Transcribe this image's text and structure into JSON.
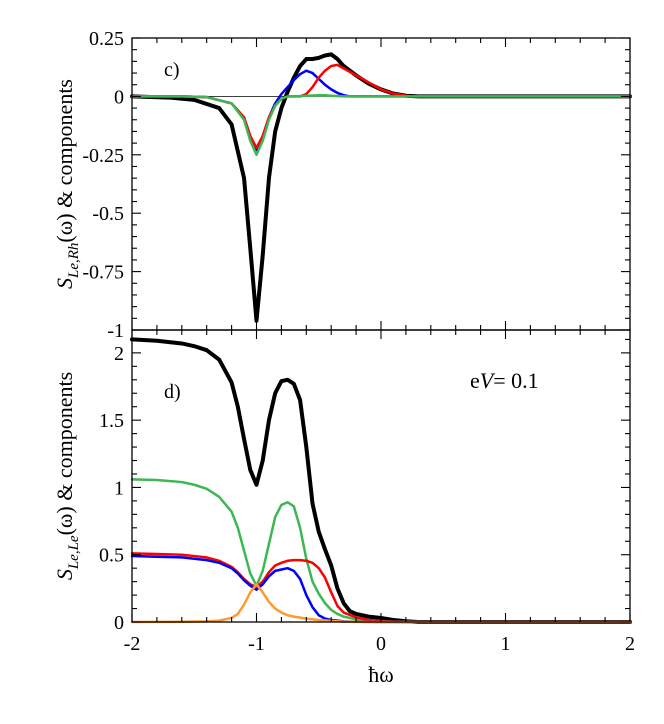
{
  "chart_data": [
    {
      "type": "line",
      "panel_label": "c)",
      "title": "",
      "xlabel": "",
      "ylabel": {
        "prefix": "S",
        "subscript": "Le,Rh",
        "suffix": "(ω) & components"
      },
      "xlim": [
        -2,
        2
      ],
      "ylim": [
        -1,
        0.25
      ],
      "yticks": [
        0.25,
        0,
        -0.25,
        -0.5,
        -0.75,
        -1
      ],
      "ytick_labels": [
        "0.25",
        "0",
        "-0.25",
        "-0.5",
        "-0.75",
        "-1"
      ],
      "zero_line": true,
      "series": [
        {
          "name": "total",
          "color": "#000000",
          "x": [
            -2,
            -1.7,
            -1.5,
            -1.3,
            -1.2,
            -1.1,
            -1.05,
            -1.0,
            -0.95,
            -0.9,
            -0.85,
            -0.8,
            -0.75,
            -0.7,
            -0.65,
            -0.6,
            -0.55,
            -0.5,
            -0.45,
            -0.4,
            -0.35,
            -0.3,
            -0.2,
            -0.1,
            0,
            0.1,
            0.2,
            0.3,
            1,
            2
          ],
          "y": [
            0,
            -0.005,
            -0.015,
            -0.05,
            -0.12,
            -0.35,
            -0.65,
            -0.96,
            -0.68,
            -0.35,
            -0.15,
            -0.05,
            0.02,
            0.08,
            0.13,
            0.16,
            0.16,
            0.165,
            0.175,
            0.18,
            0.16,
            0.13,
            0.09,
            0.055,
            0.03,
            0.012,
            0.003,
            0,
            0,
            0
          ]
        },
        {
          "name": "blue",
          "color": "#0000ff",
          "x": [
            -2,
            -1.6,
            -1.4,
            -1.2,
            -1.1,
            -1.05,
            -1.0,
            -0.95,
            -0.9,
            -0.85,
            -0.8,
            -0.75,
            -0.7,
            -0.65,
            -0.6,
            -0.55,
            -0.5,
            -0.45,
            -0.4,
            -0.35,
            -0.3,
            -0.25,
            -0.2,
            -0.1,
            0,
            0.2,
            2
          ],
          "y": [
            0,
            0,
            -0.003,
            -0.03,
            -0.09,
            -0.17,
            -0.23,
            -0.17,
            -0.09,
            -0.03,
            0.01,
            0.04,
            0.07,
            0.095,
            0.11,
            0.1,
            0.075,
            0.05,
            0.03,
            0.015,
            0.005,
            0,
            0,
            0,
            0,
            0,
            0
          ]
        },
        {
          "name": "red",
          "color": "#ff0000",
          "x": [
            -2,
            -1.6,
            -1.4,
            -1.2,
            -1.1,
            -1.05,
            -1.0,
            -0.95,
            -0.9,
            -0.85,
            -0.8,
            -0.75,
            -0.7,
            -0.65,
            -0.6,
            -0.55,
            -0.5,
            -0.45,
            -0.4,
            -0.35,
            -0.3,
            -0.2,
            -0.1,
            0,
            0.1,
            0.2,
            0.25,
            2
          ],
          "y": [
            0,
            0,
            -0.003,
            -0.03,
            -0.09,
            -0.17,
            -0.22,
            -0.17,
            -0.09,
            -0.04,
            -0.01,
            0,
            0,
            0,
            0.01,
            0.04,
            0.08,
            0.11,
            0.13,
            0.135,
            0.12,
            0.09,
            0.06,
            0.03,
            0.012,
            0.003,
            0,
            0
          ]
        },
        {
          "name": "green",
          "color": "#3cb853",
          "x": [
            -2,
            -1.6,
            -1.4,
            -1.2,
            -1.1,
            -1.05,
            -1.0,
            -0.95,
            -0.9,
            -0.85,
            -0.8,
            -0.75,
            -0.7,
            -0.6,
            -0.5,
            -0.45,
            -0.4,
            -0.3,
            -0.2,
            -0.1,
            0,
            2
          ],
          "y": [
            0,
            0,
            -0.003,
            -0.03,
            -0.1,
            -0.19,
            -0.25,
            -0.19,
            -0.1,
            -0.04,
            -0.01,
            0,
            0,
            0.003,
            0.005,
            0.005,
            0.003,
            0,
            0,
            0,
            0,
            0
          ]
        }
      ]
    },
    {
      "type": "line",
      "panel_label": "d)",
      "title": "",
      "xlabel": "ħω",
      "ylabel": {
        "prefix": "S",
        "subscript": "Le,Le",
        "suffix": "(ω) & components"
      },
      "annotation": {
        "prefix": "e",
        "italic": "V",
        "suffix": "= 0.1"
      },
      "xlim": [
        -2,
        2
      ],
      "ylim": [
        0,
        2.17
      ],
      "xticks": [
        -2,
        -1,
        0,
        1,
        2
      ],
      "xtick_labels": [
        "-2",
        "-1",
        "0",
        "1",
        "2"
      ],
      "yticks": [
        2,
        1.5,
        1,
        0.5,
        0
      ],
      "ytick_labels": [
        "2",
        "1.5",
        "1",
        "0.5",
        "0"
      ],
      "series": [
        {
          "name": "total",
          "color": "#000000",
          "x": [
            -2,
            -1.8,
            -1.6,
            -1.5,
            -1.4,
            -1.3,
            -1.2,
            -1.15,
            -1.1,
            -1.05,
            -1.0,
            -0.95,
            -0.9,
            -0.85,
            -0.8,
            -0.75,
            -0.7,
            -0.65,
            -0.6,
            -0.55,
            -0.5,
            -0.45,
            -0.4,
            -0.35,
            -0.3,
            -0.25,
            -0.2,
            -0.1,
            0,
            0.1,
            0.2,
            0.3,
            1,
            2
          ],
          "y": [
            2.1,
            2.09,
            2.07,
            2.05,
            2.02,
            1.95,
            1.78,
            1.6,
            1.36,
            1.13,
            1.02,
            1.2,
            1.5,
            1.7,
            1.79,
            1.8,
            1.77,
            1.65,
            1.3,
            0.88,
            0.67,
            0.54,
            0.42,
            0.25,
            0.14,
            0.08,
            0.06,
            0.04,
            0.03,
            0.015,
            0.006,
            0,
            0,
            0
          ]
        },
        {
          "name": "green",
          "color": "#3cb853",
          "x": [
            -2,
            -1.8,
            -1.6,
            -1.5,
            -1.4,
            -1.3,
            -1.2,
            -1.15,
            -1.1,
            -1.05,
            -1.0,
            -0.95,
            -0.9,
            -0.85,
            -0.8,
            -0.75,
            -0.7,
            -0.65,
            -0.6,
            -0.55,
            -0.5,
            -0.45,
            -0.4,
            -0.35,
            -0.3,
            -0.2,
            -0.1,
            0,
            0.1,
            0.2,
            2
          ],
          "y": [
            1.06,
            1.055,
            1.04,
            1.02,
            0.99,
            0.93,
            0.82,
            0.7,
            0.53,
            0.36,
            0.27,
            0.38,
            0.58,
            0.78,
            0.87,
            0.89,
            0.86,
            0.7,
            0.47,
            0.3,
            0.21,
            0.14,
            0.09,
            0.06,
            0.04,
            0.02,
            0.01,
            0.005,
            0.002,
            0,
            0
          ]
        },
        {
          "name": "red",
          "color": "#ff0000",
          "x": [
            -2,
            -1.8,
            -1.6,
            -1.5,
            -1.4,
            -1.3,
            -1.2,
            -1.15,
            -1.1,
            -1.05,
            -1.0,
            -0.95,
            -0.9,
            -0.85,
            -0.8,
            -0.75,
            -0.7,
            -0.65,
            -0.6,
            -0.55,
            -0.5,
            -0.45,
            -0.4,
            -0.35,
            -0.3,
            -0.2,
            -0.1,
            0,
            0.1,
            0.2,
            2
          ],
          "y": [
            0.51,
            0.505,
            0.5,
            0.49,
            0.48,
            0.455,
            0.41,
            0.37,
            0.32,
            0.28,
            0.26,
            0.3,
            0.37,
            0.42,
            0.44,
            0.455,
            0.46,
            0.46,
            0.455,
            0.44,
            0.4,
            0.33,
            0.22,
            0.12,
            0.07,
            0.035,
            0.015,
            0.006,
            0.002,
            0,
            0
          ]
        },
        {
          "name": "blue",
          "color": "#0000ff",
          "x": [
            -2,
            -1.8,
            -1.6,
            -1.5,
            -1.4,
            -1.3,
            -1.2,
            -1.15,
            -1.1,
            -1.05,
            -1.0,
            -0.95,
            -0.9,
            -0.85,
            -0.8,
            -0.75,
            -0.7,
            -0.65,
            -0.6,
            -0.55,
            -0.5,
            -0.45,
            -0.4,
            -0.35,
            -0.3,
            -0.2,
            -0.1,
            0,
            0.1,
            2
          ],
          "y": [
            0.49,
            0.485,
            0.48,
            0.47,
            0.46,
            0.44,
            0.4,
            0.36,
            0.31,
            0.27,
            0.24,
            0.28,
            0.34,
            0.38,
            0.39,
            0.4,
            0.38,
            0.32,
            0.2,
            0.11,
            0.05,
            0.025,
            0.015,
            0.01,
            0.005,
            0.002,
            0.001,
            0,
            0,
            0
          ]
        },
        {
          "name": "orange",
          "color": "#ff9933",
          "x": [
            -2,
            -1.6,
            -1.4,
            -1.3,
            -1.2,
            -1.15,
            -1.1,
            -1.05,
            -1.0,
            -0.95,
            -0.9,
            -0.85,
            -0.8,
            -0.75,
            -0.7,
            -0.6,
            -0.5,
            -0.4,
            -0.3,
            -0.2,
            -0.1,
            0,
            2
          ],
          "y": [
            0,
            0.002,
            0.005,
            0.01,
            0.03,
            0.06,
            0.13,
            0.22,
            0.28,
            0.22,
            0.15,
            0.1,
            0.07,
            0.05,
            0.04,
            0.025,
            0.015,
            0.008,
            0.003,
            0.001,
            0,
            0,
            0
          ]
        }
      ]
    }
  ]
}
